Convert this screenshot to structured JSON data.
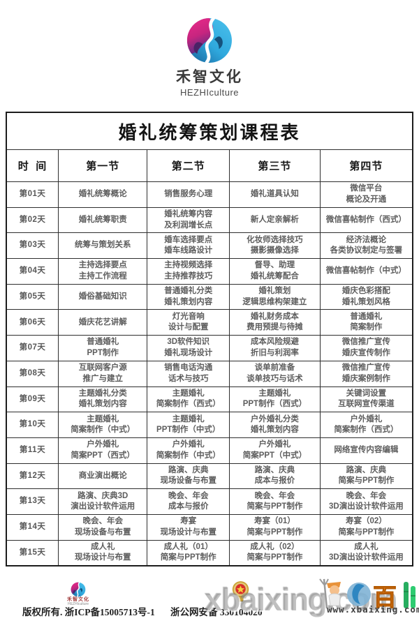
{
  "brand": {
    "name": "禾智文化",
    "subname": "HEZHIculture"
  },
  "table": {
    "title": "婚礼统筹策划课程表",
    "columns": [
      "时  间",
      "第一节",
      "第二节",
      "第三节",
      "第四节"
    ],
    "rows": [
      {
        "day": "第01天",
        "cells": [
          [
            "婚礼统筹概论"
          ],
          [
            "销售服务心理"
          ],
          [
            "婚礼道具认知"
          ],
          [
            "微信平台",
            "概论及开通"
          ]
        ]
      },
      {
        "day": "第02天",
        "cells": [
          [
            "婚礼统筹职责"
          ],
          [
            "婚礼统筹内容",
            "及利润增长点"
          ],
          [
            "新人定亲解析"
          ],
          [
            "微信喜帖制作（西式）"
          ]
        ]
      },
      {
        "day": "第03天",
        "cells": [
          [
            "统筹与策划关系"
          ],
          [
            "婚车选择要点",
            "婚车线路设计"
          ],
          [
            "化妆师选择技巧",
            "摄影摄像选择"
          ],
          [
            "经济法概论",
            "各类协议制定与签署"
          ]
        ]
      },
      {
        "day": "第04天",
        "cells": [
          [
            "主持选择要点",
            "主持工作流程"
          ],
          [
            "主持视频选择",
            "主持推荐技巧"
          ],
          [
            "督导、助理",
            "婚礼统筹配合"
          ],
          [
            "微信喜帖制作（中式）"
          ]
        ]
      },
      {
        "day": "第05天",
        "cells": [
          [
            "婚俗基础知识"
          ],
          [
            "普通婚礼分类",
            "婚礼策划内容"
          ],
          [
            "婚礼策划",
            "逻辑思维构架建立"
          ],
          [
            "婚庆色彩搭配",
            "婚礼策划风格"
          ]
        ]
      },
      {
        "day": "第06天",
        "cells": [
          [
            "婚庆花艺讲解"
          ],
          [
            "灯光音响",
            "设计与配置"
          ],
          [
            "婚礼财务成本",
            "费用预提与待摊"
          ],
          [
            "普通婚礼",
            "简案制作"
          ]
        ]
      },
      {
        "day": "第07天",
        "cells": [
          [
            "普通婚礼",
            "PPT制作"
          ],
          [
            "3D软件知识",
            "婚礼现场设计"
          ],
          [
            "成本风险规避",
            "折旧与利润率"
          ],
          [
            "微信推广宣传",
            "婚庆宣传制作"
          ]
        ]
      },
      {
        "day": "第08天",
        "cells": [
          [
            "互联网客户源",
            "推广与建立"
          ],
          [
            "销售电话沟通",
            "话术与技巧"
          ],
          [
            "谈单前准备",
            "谈单技巧与话术"
          ],
          [
            "微信推广宣传",
            "婚庆案例制作"
          ]
        ]
      },
      {
        "day": "第09天",
        "cells": [
          [
            "主题婚礼分类",
            "婚礼策划内容"
          ],
          [
            "主题婚礼",
            "简案制作（西式）"
          ],
          [
            "主题婚礼",
            "PPT制作（西式）"
          ],
          [
            "关键词设置",
            "互联网宣传渠道"
          ]
        ]
      },
      {
        "day": "第10天",
        "cells": [
          [
            "主题婚礼",
            "简案制作（中式）"
          ],
          [
            "主题婚礼",
            "PPT制作（中式）"
          ],
          [
            "户外婚礼分类",
            "婚礼策划内容"
          ],
          [
            "户外婚礼",
            "简案制作（西式）"
          ]
        ]
      },
      {
        "day": "第11天",
        "cells": [
          [
            "户外婚礼",
            "简案PPT（西式）"
          ],
          [
            "户外婚礼",
            "简案制作（中式）"
          ],
          [
            "户外婚礼",
            "简案PPT（中式）"
          ],
          [
            "网络宣传内容编辑"
          ]
        ]
      },
      {
        "day": "第12天",
        "cells": [
          [
            "商业演出概论"
          ],
          [
            "路演、庆典",
            "现场设备与布置"
          ],
          [
            "路演、庆典",
            "成本与报价"
          ],
          [
            "路演、庆典",
            "简案与PPT制作"
          ]
        ]
      },
      {
        "day": "第13天",
        "cells": [
          [
            "路演、庆典3D",
            "演出设计软件运用"
          ],
          [
            "晚会、年会",
            "成本与报价"
          ],
          [
            "晚会、年会",
            "简案与PPT制作"
          ],
          [
            "晚会、年会",
            "3D演出设计软件运用"
          ]
        ]
      },
      {
        "day": "第14天",
        "cells": [
          [
            "晚会、年会",
            "现场设备与布置"
          ],
          [
            "寿宴",
            "现场设计与布置"
          ],
          [
            "寿宴（01）",
            "简案与PPT制作"
          ],
          [
            "寿宴（02）",
            "简案与PPT制作"
          ]
        ]
      },
      {
        "day": "第15天",
        "cells": [
          [
            "成人礼",
            "现场设计与布置"
          ],
          [
            "成人礼（01）",
            "简案与PPT制作"
          ],
          [
            "成人礼（02）",
            "简案与PPT制作"
          ],
          [
            "成人礼",
            "3D演出设计软件运用"
          ]
        ]
      }
    ]
  },
  "footer": {
    "logo_name": "禾智文化",
    "logo_sub": "HEZHIculture",
    "copyright": "版权所有. 浙ICP备15005713号-1",
    "security": "浙公网安备 330104020"
  },
  "watermark": {
    "big_text": "xbaixing.com",
    "url": "www.xbaixing.com"
  },
  "colors": {
    "logo_pink": "#e0217f",
    "logo_purple": "#5b2d84",
    "logo_blue": "#2fa8dd",
    "logo_dark_blue": "#1b6fa6",
    "badge_gold": "#c9a236",
    "badge_red": "#d8302a"
  }
}
